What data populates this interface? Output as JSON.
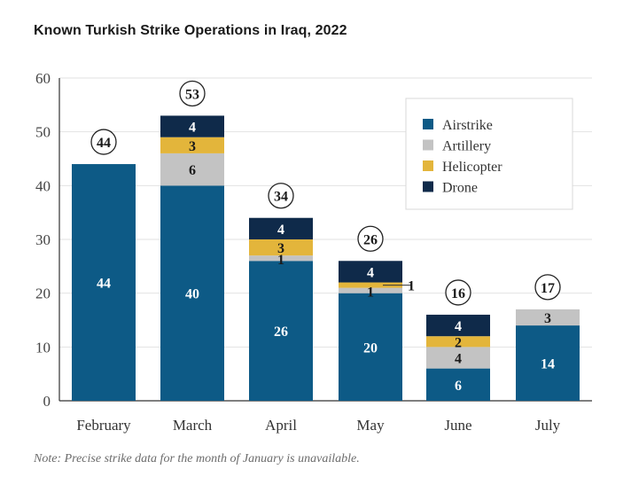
{
  "chart_data": {
    "type": "stacked-bar",
    "title": "Known Turkish Strike Operations in Iraq, 2022",
    "note": "Note: Precise strike data for the month of January is unavailable.",
    "categories": [
      "February",
      "March",
      "April",
      "May",
      "June",
      "July"
    ],
    "series": [
      {
        "name": "Airstrike",
        "color": "#0d5a86",
        "label_color": "#ffffff",
        "values": [
          44,
          40,
          26,
          20,
          6,
          14
        ]
      },
      {
        "name": "Artillery",
        "color": "#c3c3c3",
        "label_color": "#1a1a1a",
        "values": [
          0,
          6,
          1,
          1,
          4,
          3
        ]
      },
      {
        "name": "Helicopter",
        "color": "#e3b53b",
        "label_color": "#1a1a1a",
        "values": [
          0,
          3,
          3,
          1,
          2,
          0
        ]
      },
      {
        "name": "Drone",
        "color": "#0f2a4a",
        "label_color": "#ffffff",
        "values": [
          0,
          4,
          4,
          4,
          4,
          0
        ]
      }
    ],
    "totals": [
      44,
      53,
      34,
      26,
      16,
      17
    ],
    "ylim": [
      0,
      60
    ],
    "yticks": [
      0,
      10,
      20,
      30,
      40,
      50,
      60
    ],
    "grid": true,
    "legend_position": "top-right"
  }
}
